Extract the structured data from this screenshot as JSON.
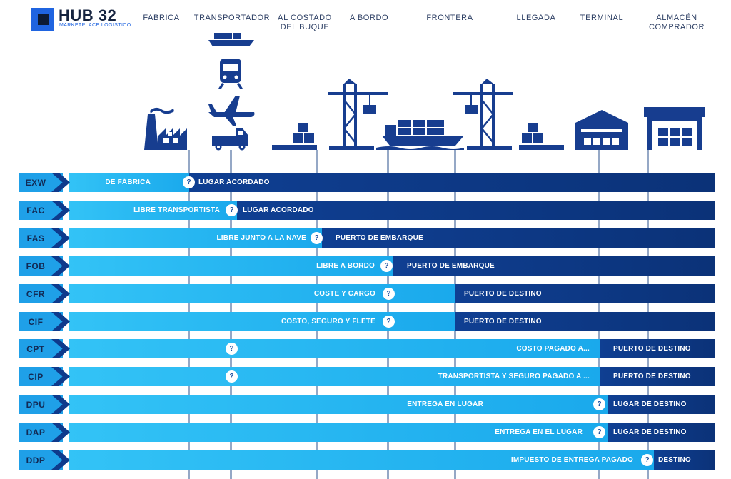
{
  "brand": {
    "name": "HUB 32",
    "tagline": "MARKETPLACE LOGISTICO"
  },
  "columns": [
    {
      "id": "fabrica",
      "lines": [
        "FABRICA"
      ]
    },
    {
      "id": "transportador",
      "lines": [
        "TRANSPORTADOR"
      ]
    },
    {
      "id": "costado",
      "lines": [
        "AL COSTADO",
        "DEL BUQUE"
      ]
    },
    {
      "id": "bordo",
      "lines": [
        "A BORDO"
      ]
    },
    {
      "id": "frontera",
      "lines": [
        "FRONTERA"
      ]
    },
    {
      "id": "llegada",
      "lines": [
        "LLEGADA"
      ]
    },
    {
      "id": "terminal",
      "lines": [
        "TERMINAL"
      ]
    },
    {
      "id": "almacen",
      "lines": [
        "ALMACÉN",
        "COMPRADOR"
      ]
    }
  ],
  "icons": [
    "factory-icon",
    "ship-icon",
    "train-icon",
    "airplane-icon",
    "truck-icon",
    "cargo-boxes-icon",
    "port-crane-icon",
    "container-ship-icon",
    "warehouse-icon",
    "buyer-warehouse-icon"
  ],
  "colors": {
    "seller_risk": "#33c3f6",
    "buyer_risk": "#0f3f92",
    "code_box": "#1fa0e8"
  },
  "question_mark": "?",
  "rows": [
    {
      "code": "EXW",
      "light_label": "DE FÁBRICA",
      "dark_label": "LUGAR ACORDADO"
    },
    {
      "code": "FAC",
      "light_label": "LIBRE TRANSPORTISTA",
      "dark_label": "LUGAR ACORDADO"
    },
    {
      "code": "FAS",
      "light_label": "LIBRE JUNTO A LA NAVE",
      "dark_label": "PUERTO DE EMBARQUE"
    },
    {
      "code": "FOB",
      "light_label": "LIBRE A BORDO",
      "dark_label": "PUERTO DE EMBARQUE"
    },
    {
      "code": "CFR",
      "light_label": "COSTE Y CARGO",
      "dark_label": "PUERTO DE DESTINO"
    },
    {
      "code": "CIF",
      "light_label": "COSTO, SEGURO Y FLETE",
      "dark_label": "PUERTO DE DESTINO"
    },
    {
      "code": "CPT",
      "light_label": "COSTO PAGADO A...",
      "dark_label": "PUERTO DE DESTINO"
    },
    {
      "code": "CIP",
      "light_label": "TRANSPORTISTA Y SEGURO PAGADO A ...",
      "dark_label": "PUERTO DE DESTINO"
    },
    {
      "code": "DPU",
      "light_label": "ENTREGA EN LUGAR",
      "dark_label": "LUGAR DE DESTINO"
    },
    {
      "code": "DAP",
      "light_label": "ENTREGA EN EL LUGAR",
      "dark_label": "LUGAR DE DESTINO"
    },
    {
      "code": "DDP",
      "light_label": "IMPUESTO DE ENTREGA PAGADO",
      "dark_label": "DESTINO"
    }
  ]
}
